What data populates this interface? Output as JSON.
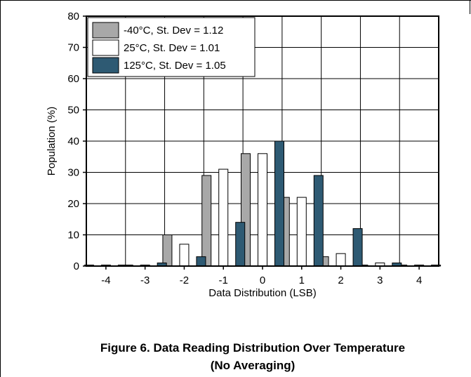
{
  "chart_data": {
    "type": "bar",
    "xlabel": "Data Distribution (LSB)",
    "ylabel": "Population (%)",
    "ylim": [
      0,
      80
    ],
    "yticks": [
      "0",
      "10",
      "20",
      "30",
      "40",
      "50",
      "60",
      "70",
      "80"
    ],
    "categories": [
      "-4",
      "-3",
      "-2",
      "-1",
      "0",
      "1",
      "2",
      "3",
      "4"
    ],
    "grid": true,
    "legend_position": "top-left",
    "series": [
      {
        "name": "-40°C, St. Dev = 1.12",
        "color": "#a8a8a8",
        "values": [
          0,
          0,
          10,
          29,
          36,
          22,
          3,
          0,
          0
        ]
      },
      {
        "name": "25°C, St. Dev = 1.01",
        "color": "#ffffff",
        "values": [
          0,
          0,
          7,
          31,
          36,
          22,
          4,
          1,
          0
        ]
      },
      {
        "name": "125°C, St. Dev = 1.05",
        "color": "#2e5a73",
        "values": [
          0,
          1,
          3,
          14,
          40,
          29,
          12,
          1,
          0
        ]
      }
    ]
  },
  "figure": {
    "caption_line1": "Figure 6. Data Reading Distribution Over Temperature",
    "caption_line2": "(No Averaging)"
  }
}
